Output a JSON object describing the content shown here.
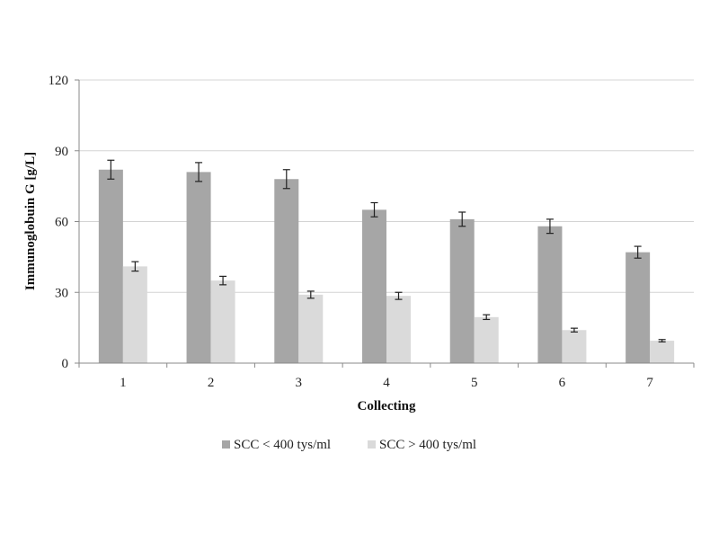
{
  "chart_data": {
    "type": "bar",
    "xlabel": "Collecting",
    "ylabel": "Immunoglobuin G [g/L]",
    "ylim": [
      0,
      120
    ],
    "yticks": [
      "0",
      "30",
      "60",
      "90",
      "120"
    ],
    "grid": "horizontal",
    "legend_position": "bottom",
    "categories": [
      "1",
      "2",
      "3",
      "4",
      "5",
      "6",
      "7"
    ],
    "series": [
      {
        "name": "SCC < 400 tys/ml",
        "color": "#a6a6a6",
        "values": [
          82,
          81,
          78,
          65,
          61,
          58,
          47
        ],
        "errors": [
          4,
          4,
          4,
          3,
          3,
          3,
          2.5
        ]
      },
      {
        "name": "SCC > 400 tys/ml",
        "color": "#dadada",
        "values": [
          41,
          35,
          29,
          28.5,
          19.5,
          14,
          9.5
        ],
        "errors": [
          2,
          1.8,
          1.5,
          1.5,
          1,
          0.8,
          0.5
        ]
      }
    ]
  }
}
